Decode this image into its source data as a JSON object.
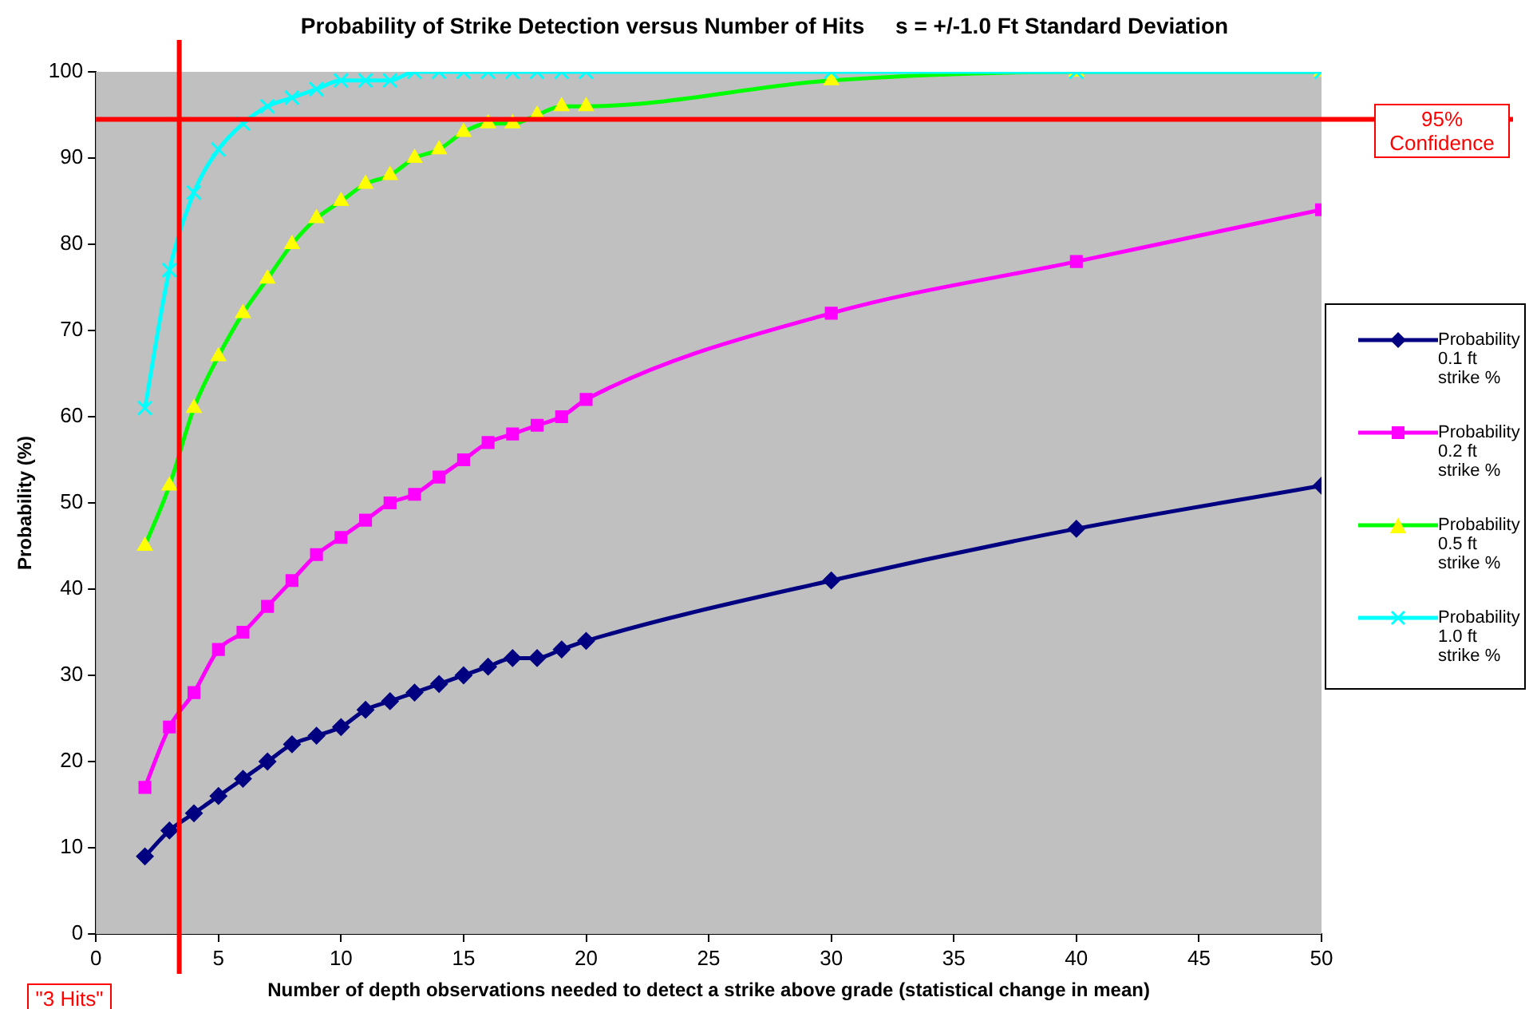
{
  "chart_data": {
    "type": "line",
    "title": "Probability of Strike Detection versus Number of Hits     s = +/-1.0 Ft Standard Deviation",
    "xlabel": "Number of depth observations needed to detect a strike above grade (statistical change in mean)",
    "ylabel": "Probability (%)",
    "x": [
      2,
      3,
      4,
      5,
      6,
      7,
      8,
      9,
      10,
      11,
      12,
      13,
      14,
      15,
      16,
      17,
      18,
      19,
      20,
      30,
      40,
      50
    ],
    "series": [
      {
        "name": "Probability 0.1 ft strike %",
        "color": "#000080",
        "marker": "diamond",
        "values": [
          9,
          12,
          14,
          16,
          18,
          20,
          22,
          23,
          24,
          26,
          27,
          28,
          29,
          30,
          31,
          32,
          32,
          33,
          34,
          41,
          47,
          52
        ]
      },
      {
        "name": "Probability 0.2 ft strike %",
        "color": "#ff00ff",
        "marker": "square",
        "values": [
          17,
          24,
          28,
          33,
          35,
          38,
          41,
          44,
          46,
          48,
          50,
          51,
          53,
          55,
          57,
          58,
          59,
          60,
          62,
          72,
          78,
          84
        ]
      },
      {
        "name": "Probability 0.5 ft strike %",
        "color": "#00ff00",
        "marker": "triangle",
        "values": [
          45,
          52,
          61,
          67,
          72,
          76,
          80,
          83,
          85,
          87,
          88,
          90,
          91,
          93,
          94,
          94,
          95,
          96,
          96,
          99,
          100,
          100
        ]
      },
      {
        "name": "Probability 1.0 ft strike %",
        "color": "#00ffff",
        "marker": "cross",
        "values": [
          61,
          77,
          86,
          91,
          94,
          96,
          97,
          98,
          99,
          99,
          99,
          100,
          100,
          100,
          100,
          100,
          100,
          100,
          100,
          100,
          100,
          100
        ]
      }
    ],
    "xlim": [
      0,
      50
    ],
    "xticks": [
      0,
      5,
      10,
      15,
      20,
      25,
      30,
      35,
      40,
      45,
      50
    ],
    "ylim": [
      0,
      100
    ],
    "yticks": [
      0,
      10,
      20,
      30,
      40,
      50,
      60,
      70,
      80,
      90,
      100
    ],
    "grid": false,
    "legend": "right",
    "ref_lines": [
      {
        "axis": "y",
        "value": 94.5,
        "label": "95% Confidence",
        "color": "#ff0000"
      },
      {
        "axis": "x",
        "value": 3.4,
        "label": "\"3 Hits\"",
        "color": "#ff0000"
      }
    ]
  }
}
